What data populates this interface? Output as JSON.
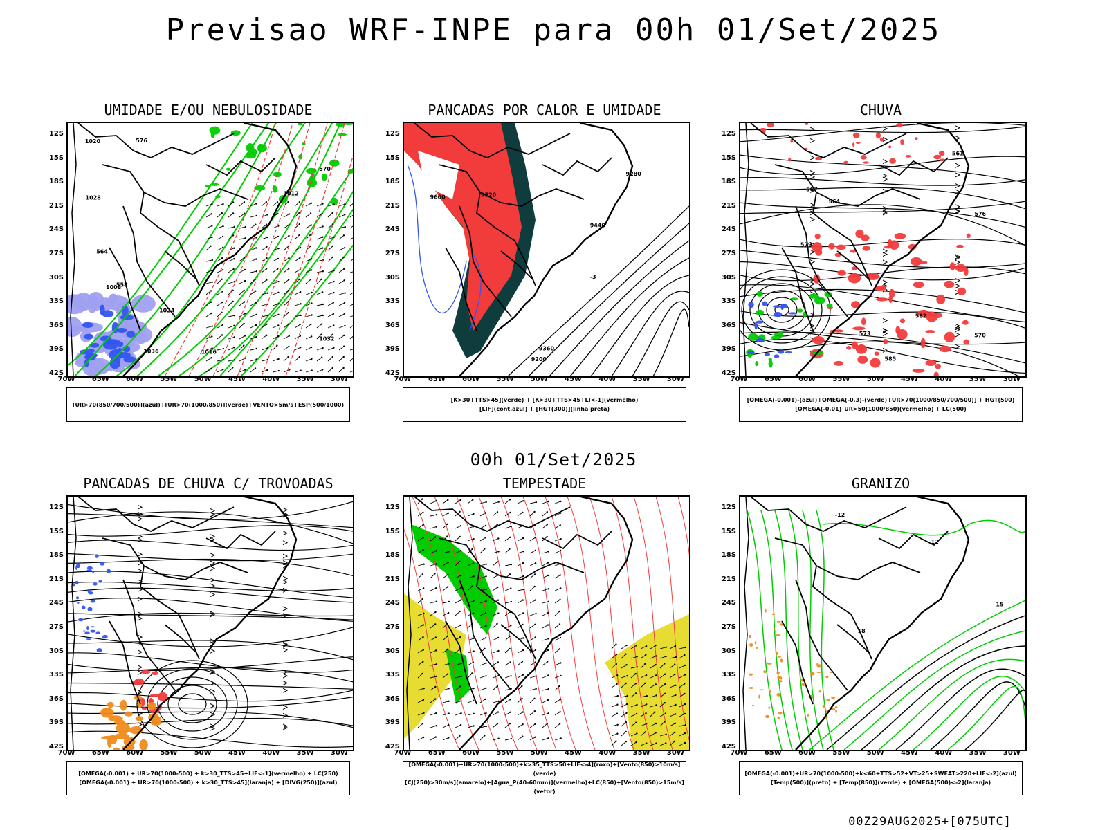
{
  "header": {
    "title": "Previsao WRF-INPE  para 00h 01/Set/2025"
  },
  "mid_title": "00h 01/Set/2025",
  "footer": "00Z29AUG2025+[075UTC]",
  "axes": {
    "lat_labels": [
      "12S",
      "15S",
      "18S",
      "21S",
      "24S",
      "27S",
      "30S",
      "33S",
      "36S",
      "39S",
      "42S"
    ],
    "lon_labels": [
      "70W",
      "65W",
      "60W",
      "55W",
      "50W",
      "45W",
      "40W",
      "35W",
      "30W"
    ]
  },
  "colors": {
    "red": "#f23c3c",
    "green": "#00cc00",
    "blue": "#3355ee",
    "dark": "#0f3c3c",
    "orange": "#f08c1e",
    "yellow": "#e6dc32",
    "lavender": "#a0a0f0"
  },
  "panels": [
    {
      "title": "UMIDADE E/OU NEBULOSIDADE",
      "legend": [
        "[UR>70(850/700/500)](azul)+[UR>70(1000/850)](verde)+VENTO>5m/s+ESP(500/1000)"
      ],
      "contour_labels": [
        "1012",
        "1016",
        "1020",
        "1024",
        "1028",
        "1032",
        "1036",
        "1008",
        "576",
        "570",
        "564",
        "558"
      ]
    },
    {
      "title": "PANCADAS POR CALOR E UMIDADE",
      "legend": [
        "[K>30+TTS>45](verde) + [K>30+TTS>45+LI<-1](vermelho)",
        "[LIF](cont.azul) + [HGT(300)](linha preta)"
      ],
      "contour_labels": [
        "9600",
        "9520",
        "9440",
        "9360",
        "9280",
        "9200",
        "-3"
      ]
    },
    {
      "title": "CHUVA",
      "legend": [
        "[OMEGA(-0.001)-(azul)+OMEGA(-0.3)-(verde)+UR>70(1000/850/700/500)] + HGT(500)",
        "[OMEGA(-0.01)_UR>50(1000/850)(vermelho) + LC(500)"
      ],
      "contour_labels": [
        "582",
        "579",
        "576",
        "573",
        "570",
        "567",
        "564",
        "561",
        "585"
      ]
    },
    {
      "title": "PANCADAS DE CHUVA C/ TROVOADAS",
      "legend": [
        "[OMEGA(-0.001) + UR>70(1000-500) + k>30_TTS>45+LIF<-1](vermelho) + LC(250)",
        "[OMEGA(-0.001) + UR>70(1000-500) + k>30_TTS>45](laranja) + [DIVG(250)](azul)"
      ],
      "contour_labels": []
    },
    {
      "title": "TEMPESTADE",
      "legend": [
        "[OMEGA(-0.001)+UR>70(1000-500)+k>35_TTS>50+LIF<-4](roxo)+[Vento(850)>10m/s](verde)",
        "[CJ(250)>30m/s](amarelo)+[Agua_P(40-60mm)](vermelho)+LC(850)+[Vento(850)>15m/s](vetor)"
      ],
      "contour_labels": []
    },
    {
      "title": "GRANIZO",
      "legend": [
        "[OMEGA(-0.001)+UR>70(1000-500)+k<60+TTS>52+VT>25+SWEAT>220+LIF<-2](azul)",
        "[Temp(500)](preto) + [Temp(850)](verde) + [OMEGA(500)<-2](laranja)"
      ],
      "contour_labels": [
        "-12",
        "12",
        "15",
        "18"
      ]
    }
  ]
}
